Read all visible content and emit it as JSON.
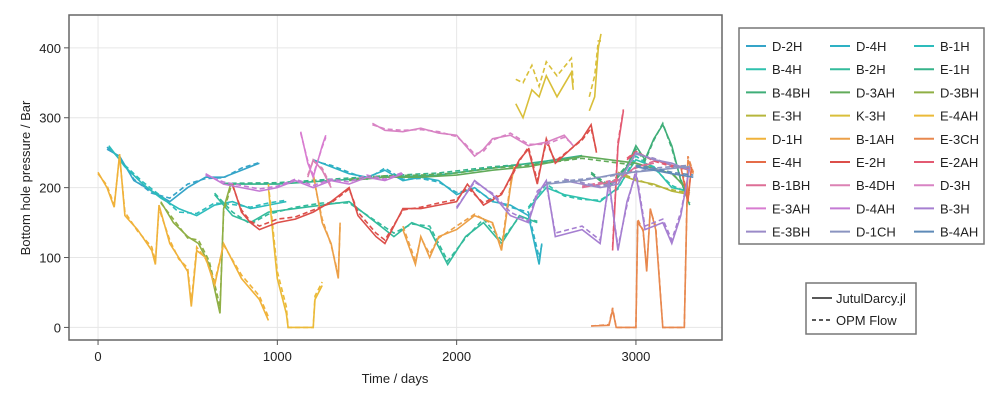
{
  "chart_data": {
    "type": "line",
    "xlabel": "Time / days",
    "ylabel": "Bottom hole pressure / Bar",
    "xlim": [
      -162,
      3480
    ],
    "ylim": [
      -18,
      447
    ],
    "xticks": [
      0,
      1000,
      2000,
      3000
    ],
    "yticks": [
      0,
      100,
      200,
      300,
      400
    ],
    "grid": true,
    "legend_placement": "right",
    "style_legend": [
      {
        "label": "JutulDarcy.jl",
        "dash": "solid"
      },
      {
        "label": "OPM Flow",
        "dash": "dashed"
      }
    ],
    "series": [
      {
        "name": "D-2H",
        "color": "#35a4c8",
        "t": [
          50,
          120,
          200,
          300,
          400,
          500,
          600,
          700,
          800,
          900
        ],
        "jutul": [
          255,
          245,
          210,
          195,
          180,
          200,
          215,
          215,
          225,
          235
        ],
        "opm": [
          258,
          243,
          212,
          192,
          185,
          205,
          213,
          214,
          228,
          236
        ]
      },
      {
        "name": "D-4H",
        "color": "#2eb1c4",
        "t": [
          1200,
          1300,
          1400,
          1500,
          1600,
          1700,
          1800,
          1900,
          2000,
          2100,
          2200,
          2300,
          2400,
          2460,
          2475
        ],
        "jutul": [
          240,
          230,
          220,
          215,
          225,
          210,
          215,
          210,
          190,
          200,
          180,
          175,
          160,
          90,
          120
        ],
        "opm": [
          238,
          232,
          222,
          212,
          228,
          212,
          213,
          208,
          193,
          198,
          182,
          172,
          165,
          100,
          118
        ]
      },
      {
        "name": "B-1H",
        "color": "#2dbcbc",
        "t": [
          60,
          150,
          250,
          350,
          450,
          550,
          650,
          750,
          850,
          950,
          1050
        ],
        "jutul": [
          260,
          230,
          205,
          185,
          170,
          160,
          175,
          180,
          170,
          175,
          180
        ],
        "opm": [
          258,
          232,
          208,
          188,
          165,
          163,
          178,
          176,
          172,
          178,
          182
        ]
      },
      {
        "name": "B-4H",
        "color": "#2fc1ad",
        "t": [
          2400,
          2500,
          2600,
          2700,
          2800,
          2900,
          3000,
          3100,
          3200,
          3300
        ],
        "jutul": [
          170,
          200,
          190,
          185,
          180,
          200,
          240,
          230,
          200,
          195
        ],
        "opm": [
          172,
          205,
          188,
          183,
          182,
          198,
          245,
          228,
          203,
          192
        ]
      },
      {
        "name": "B-2H",
        "color": "#33bb9c",
        "t": [
          650,
          750,
          850,
          950,
          1100,
          1250,
          1400,
          1550,
          1650,
          1750,
          1850,
          1950,
          2050,
          2150,
          2250,
          2350,
          2450
        ],
        "jutul": [
          190,
          160,
          150,
          165,
          170,
          175,
          180,
          150,
          130,
          150,
          140,
          90,
          130,
          150,
          120,
          160,
          150
        ],
        "opm": [
          192,
          165,
          148,
          162,
          172,
          178,
          178,
          152,
          135,
          148,
          145,
          95,
          128,
          155,
          125,
          158,
          152
        ]
      },
      {
        "name": "E-1H",
        "color": "#36b38a",
        "t": [
          700,
          1000,
          1300,
          1600,
          1900,
          2200,
          2500,
          2700
        ],
        "jutul": [
          205,
          205,
          210,
          215,
          218,
          228,
          238,
          246
        ],
        "opm": [
          206,
          207,
          212,
          217,
          221,
          230,
          236,
          244
        ]
      },
      {
        "name": "B-4BH",
        "color": "#3fae78",
        "t": [
          2750,
          2850,
          2950,
          3000,
          3050,
          3100,
          3150,
          3200,
          3250,
          3300
        ],
        "jutul": [
          220,
          200,
          230,
          260,
          240,
          270,
          290,
          260,
          210,
          175
        ],
        "opm": [
          222,
          203,
          232,
          255,
          238,
          268,
          292,
          256,
          212,
          178
        ]
      },
      {
        "name": "D-3AH",
        "color": "#62ab5a",
        "t": [
          1400,
          1600,
          1800,
          2000,
          2200,
          2400,
          2700,
          3000,
          3200,
          3300
        ],
        "jutul": [
          210,
          215,
          215,
          218,
          225,
          230,
          245,
          235,
          220,
          195
        ],
        "opm": [
          212,
          217,
          218,
          221,
          228,
          232,
          242,
          232,
          222,
          192
        ]
      },
      {
        "name": "D-3BH",
        "color": "#8faf45",
        "t": [
          350,
          420,
          500,
          560,
          620,
          680,
          700,
          740
        ],
        "jutul": [
          180,
          150,
          130,
          120,
          90,
          20,
          170,
          205
        ],
        "opm": [
          178,
          155,
          128,
          125,
          95,
          30,
          165,
          200
        ]
      },
      {
        "name": "E-3H",
        "color": "#b6b63c",
        "t": [
          2900,
          3000,
          3100,
          3200,
          3300
        ],
        "jutul": [
          220,
          210,
          205,
          195,
          190
        ],
        "opm": [
          222,
          212,
          203,
          197,
          192
        ]
      },
      {
        "name": "K-3H",
        "color": "#d9bf3a",
        "t": [
          2330,
          2370,
          2420,
          2460,
          2500,
          2560,
          2640,
          2650,
          null,
          2740,
          2770,
          2790,
          2805
        ],
        "jutul": [
          320,
          300,
          340,
          330,
          360,
          330,
          365,
          340,
          null,
          310,
          330,
          400,
          420
        ],
        "opm": [
          355,
          350,
          375,
          345,
          380,
          360,
          385,
          350,
          null,
          330,
          360,
          410,
          410
        ]
      },
      {
        "name": "E-4AH",
        "color": "#ebba38",
        "t": [
          950,
          980,
          1000,
          1050,
          1060,
          1200,
          1210,
          1250
        ],
        "jutul": [
          200,
          120,
          70,
          20,
          0,
          0,
          40,
          60
        ],
        "opm": [
          205,
          130,
          80,
          30,
          0,
          0,
          45,
          65
        ]
      },
      {
        "name": "D-1H",
        "color": "#f0b23a",
        "t": [
          0,
          50,
          90,
          120,
          150,
          220,
          300,
          320,
          340,
          400,
          450,
          500,
          520,
          550,
          600,
          650,
          700,
          800,
          900,
          950
        ],
        "jutul": [
          222,
          200,
          172,
          248,
          160,
          140,
          110,
          90,
          175,
          120,
          100,
          80,
          30,
          110,
          100,
          60,
          120,
          70,
          40,
          10
        ],
        "opm": [
          220,
          203,
          175,
          245,
          165,
          138,
          115,
          95,
          170,
          125,
          98,
          85,
          35,
          115,
          98,
          65,
          118,
          75,
          45,
          15
        ]
      },
      {
        "name": "B-1AH",
        "color": "#eca048",
        "t": [
          1200,
          1250,
          1300,
          1340,
          1350,
          null,
          1700,
          1770,
          1800,
          1850,
          1900,
          2000,
          2100,
          2200,
          2250,
          2300,
          2320
        ],
        "jutul": [
          220,
          150,
          120,
          70,
          150,
          null,
          140,
          90,
          130,
          100,
          130,
          140,
          160,
          150,
          110,
          200,
          230
        ],
        "opm": [
          215,
          155,
          118,
          75,
          148,
          null,
          145,
          95,
          128,
          105,
          128,
          145,
          162,
          148,
          115,
          205,
          228
        ]
      },
      {
        "name": "E-3CH",
        "color": "#e8884e",
        "t": [
          2750,
          2850,
          2870,
          2890,
          3000,
          3010,
          3040,
          3060,
          3080,
          3110,
          3150,
          3270,
          3290,
          3320
        ],
        "jutul": [
          2,
          3,
          25,
          0,
          0,
          150,
          140,
          80,
          170,
          140,
          0,
          0,
          240,
          220
        ],
        "opm": [
          2,
          4,
          28,
          0,
          0,
          155,
          138,
          85,
          168,
          145,
          0,
          0,
          245,
          222
        ]
      },
      {
        "name": "E-4H",
        "color": "#e56c48",
        "t": [
          3250,
          3290,
          3310
        ],
        "jutul": [
          230,
          180,
          230
        ],
        "opm": [
          232,
          185,
          228
        ]
      },
      {
        "name": "E-2H",
        "color": "#dc4f4a",
        "t": [
          750,
          800,
          850,
          900,
          1000,
          1100,
          1200,
          1300,
          1400,
          1450,
          1550,
          1600,
          1700,
          1800,
          1900,
          2000,
          2060,
          2150,
          2250,
          2300,
          2350,
          2400,
          2450,
          2500,
          2550,
          2700,
          2750,
          2780
        ],
        "jutul": [
          205,
          165,
          150,
          140,
          150,
          155,
          165,
          180,
          200,
          160,
          130,
          120,
          170,
          170,
          175,
          180,
          205,
          175,
          190,
          215,
          240,
          255,
          205,
          270,
          235,
          270,
          290,
          250
        ],
        "opm": [
          203,
          168,
          152,
          145,
          155,
          158,
          168,
          178,
          198,
          165,
          135,
          125,
          168,
          172,
          178,
          183,
          200,
          178,
          192,
          212,
          238,
          258,
          210,
          265,
          238,
          268,
          285,
          252
        ]
      },
      {
        "name": "E-2AH",
        "color": "#e35a72",
        "t": [
          2870,
          2900,
          2930,
          null,
          2950,
          3000,
          3100,
          3200,
          3300
        ],
        "jutul": [
          110,
          260,
          310,
          null,
          240,
          250,
          240,
          232,
          225
        ],
        "opm": [
          115,
          265,
          312,
          null,
          242,
          252,
          238,
          230,
          228
        ]
      },
      {
        "name": "B-1BH",
        "color": "#dd6e96",
        "t": [
          2700,
          2800,
          2900,
          3000,
          3100
        ],
        "jutul": [
          200,
          205,
          210,
          230,
          235
        ],
        "opm": [
          202,
          207,
          212,
          228,
          238
        ]
      },
      {
        "name": "B-4DH",
        "color": "#dc82b4",
        "t": [
          1170,
          1200,
          1250,
          1300
        ],
        "jutul": [
          215,
          240,
          225,
          200
        ],
        "opm": [
          218,
          238,
          228,
          202
        ]
      },
      {
        "name": "D-3H",
        "color": "#d883c4",
        "t": [
          1530,
          1600,
          1700,
          1800,
          1900,
          2000,
          2050,
          2100,
          2150,
          2200,
          2300,
          2400,
          2500,
          2600,
          2650
        ],
        "jutul": [
          292,
          282,
          280,
          285,
          278,
          275,
          260,
          245,
          255,
          270,
          275,
          260,
          265,
          275,
          260
        ],
        "opm": [
          290,
          284,
          282,
          283,
          280,
          273,
          262,
          248,
          252,
          268,
          278,
          262,
          262,
          272,
          262
        ]
      },
      {
        "name": "E-3AH",
        "color": "#d87cd0",
        "t": [
          1130,
          1170,
          1200,
          1250,
          1270
        ],
        "jutul": [
          280,
          235,
          215,
          260,
          275
        ],
        "opm": [
          278,
          238,
          218,
          258,
          272
        ]
      },
      {
        "name": "D-4AH",
        "color": "#c47ad4",
        "t": [
          600,
          700,
          800,
          900,
          1000,
          1100,
          1200,
          1300,
          1400,
          1500,
          1600,
          1700
        ],
        "jutul": [
          220,
          205,
          200,
          195,
          200,
          210,
          200,
          210,
          205,
          215,
          210,
          220
        ],
        "opm": [
          218,
          208,
          203,
          198,
          202,
          212,
          203,
          212,
          208,
          218,
          212,
          222
        ]
      },
      {
        "name": "B-3H",
        "color": "#a67fd1",
        "t": [
          2000,
          2100,
          2200,
          2300,
          2400,
          2450,
          2500,
          2550,
          2700,
          2800,
          2850,
          2900,
          2950,
          3000,
          3050,
          3150,
          3200,
          3250,
          3300
        ],
        "jutul": [
          170,
          210,
          190,
          160,
          150,
          190,
          210,
          130,
          140,
          120,
          210,
          110,
          180,
          220,
          140,
          150,
          120,
          160,
          230
        ],
        "opm": [
          172,
          208,
          192,
          165,
          152,
          195,
          205,
          135,
          145,
          125,
          205,
          115,
          175,
          225,
          145,
          155,
          125,
          165,
          228
        ]
      },
      {
        "name": "E-3BH",
        "color": "#9a8ac8",
        "t": [
          2600,
          2800,
          2900,
          3000,
          3100,
          3200,
          3300
        ],
        "jutul": [
          210,
          200,
          205,
          250,
          240,
          235,
          225
        ],
        "opm": [
          212,
          202,
          208,
          248,
          242,
          232,
          228
        ]
      },
      {
        "name": "D-1CH",
        "color": "#8a94c0",
        "t": [
          2500,
          2700,
          2900,
          3100,
          3300
        ],
        "jutul": [
          205,
          210,
          220,
          225,
          230
        ],
        "opm": [
          207,
          212,
          218,
          228,
          232
        ]
      },
      {
        "name": "B-4AH",
        "color": "#5e8ab8",
        "t": [
          3000,
          3100,
          3200,
          3320
        ],
        "jutul": [
          230,
          225,
          220,
          215
        ],
        "opm": [
          232,
          228,
          222,
          218
        ]
      }
    ]
  }
}
